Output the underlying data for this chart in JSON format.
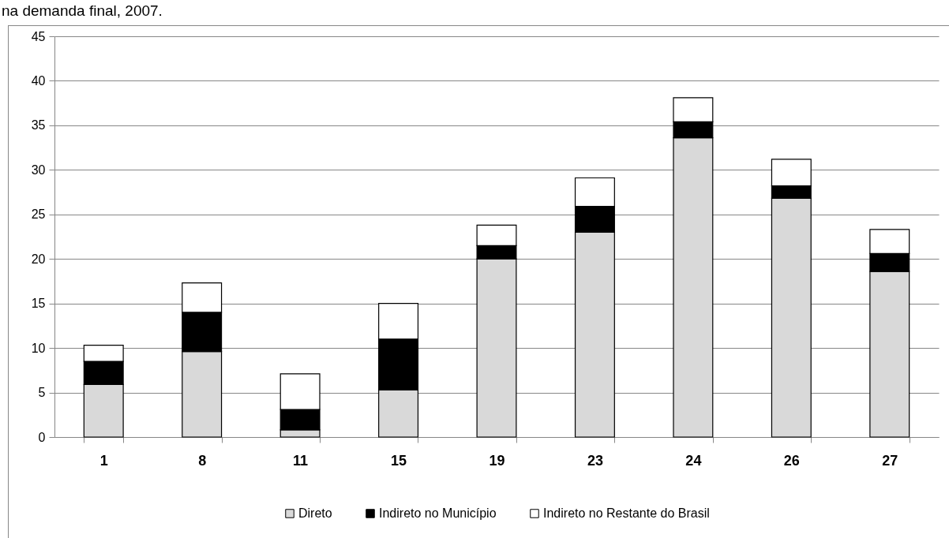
{
  "chart_data": {
    "type": "bar",
    "title": "na demanda final, 2007.",
    "categories": [
      "1",
      "8",
      "11",
      "15",
      "19",
      "23",
      "24",
      "26",
      "27"
    ],
    "series": [
      {
        "name": "Direto",
        "color": "#d9d9d9",
        "values": [
          5.9,
          9.6,
          0.8,
          5.3,
          20.0,
          23.0,
          33.6,
          26.8,
          18.6
        ]
      },
      {
        "name": "Indireto no Município",
        "color": "#000000",
        "values": [
          2.6,
          4.4,
          2.3,
          5.7,
          1.5,
          2.9,
          1.8,
          1.4,
          2.0
        ]
      },
      {
        "name": "Indireto no Restante do Brasil",
        "color": "#ffffff",
        "values": [
          1.8,
          3.3,
          4.0,
          4.0,
          2.3,
          3.2,
          2.7,
          3.0,
          2.7
        ]
      }
    ],
    "stacked": true,
    "ylim": [
      0,
      45
    ],
    "yticks": [
      0,
      5,
      10,
      15,
      20,
      25,
      30,
      35,
      40,
      45
    ],
    "grid": "y",
    "legend": "bottom"
  }
}
